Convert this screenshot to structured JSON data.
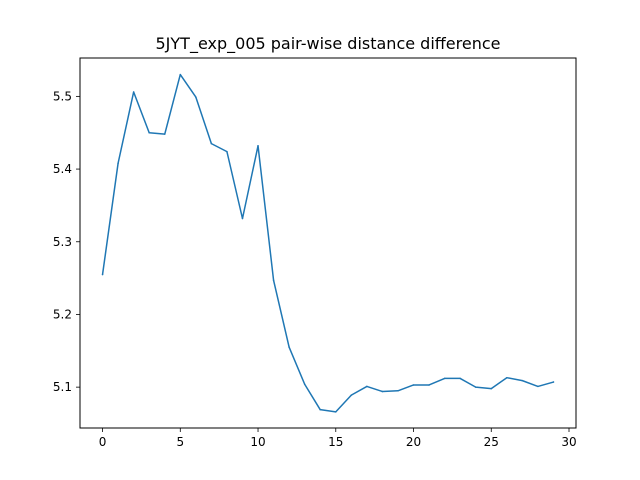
{
  "chart_data": {
    "type": "line",
    "title": "5JYT_exp_005 pair-wise distance difference",
    "xlabel": "",
    "ylabel": "",
    "xlim": [
      -1.45,
      30.45
    ],
    "ylim": [
      5.0438,
      5.5528
    ],
    "x_ticks": [
      0,
      5,
      10,
      15,
      20,
      25,
      30
    ],
    "y_ticks": [
      5.1,
      5.2,
      5.3,
      5.4,
      5.5
    ],
    "x_tick_labels": [
      "0",
      "5",
      "10",
      "15",
      "20",
      "25",
      "30"
    ],
    "y_tick_labels": [
      "5.1",
      "5.2",
      "5.3",
      "5.4",
      "5.5"
    ],
    "grid": false,
    "series": [
      {
        "color": "#1f77b4",
        "x": [
          0,
          1,
          2,
          3,
          4,
          5,
          6,
          7,
          8,
          9,
          10,
          11,
          12,
          13,
          14,
          15,
          16,
          17,
          18,
          19,
          20,
          21,
          22,
          23,
          24,
          25,
          26,
          27,
          28,
          29
        ],
        "values": [
          5.255,
          5.408,
          5.506,
          5.45,
          5.448,
          5.53,
          5.499,
          5.435,
          5.424,
          5.332,
          5.432,
          5.247,
          5.155,
          5.104,
          5.069,
          5.066,
          5.089,
          5.101,
          5.094,
          5.095,
          5.103,
          5.103,
          5.112,
          5.112,
          5.1,
          5.098,
          5.113,
          5.109,
          5.101,
          5.107
        ]
      }
    ]
  }
}
